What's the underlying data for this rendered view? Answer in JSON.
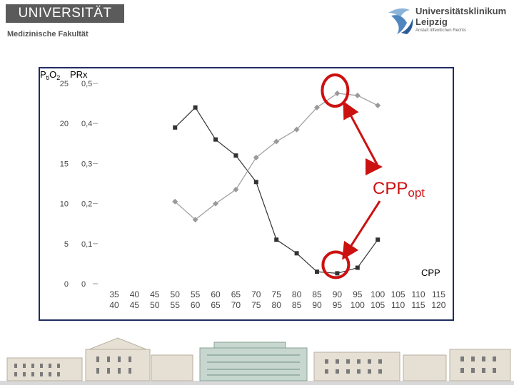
{
  "header": {
    "university": "UNIVERSITÄT LEIPZIG",
    "faculty": "Medizinische Fakultät",
    "clinic_line1": "Universitätsklinikum",
    "clinic_line2": "Leipzig",
    "clinic_line3": "Anstalt öffentlichen Rechts"
  },
  "chart_data": {
    "type": "line",
    "axis_title_left_a": "PtiO2",
    "axis_title_left_b": "PRx",
    "xlabel": "CPP",
    "annotation": "CPPopt",
    "categories": [
      "35 40",
      "40 45",
      "45 50",
      "50 55",
      "55 60",
      "60 65",
      "65 70",
      "70 75",
      "75 80",
      "80 85",
      "85 90",
      "90 95",
      "95 100",
      "100 105",
      "105 110",
      "110 115",
      "115 120"
    ],
    "category_top": [
      "35",
      "40",
      "45",
      "50",
      "55",
      "60",
      "65",
      "70",
      "75",
      "80",
      "85",
      "90",
      "95",
      "100",
      "105",
      "110",
      "115"
    ],
    "category_bottom": [
      "40",
      "45",
      "50",
      "55",
      "60",
      "65",
      "70",
      "75",
      "80",
      "85",
      "90",
      "95",
      "100",
      "105",
      "110",
      "115",
      "120"
    ],
    "y_ticks_ptio2": [
      "25",
      "20",
      "15",
      "10",
      "5",
      "0"
    ],
    "y_ticks_prx": [
      "0,5",
      "0,4",
      "0,3",
      "0,2",
      "0,1",
      "0"
    ],
    "ylim_ptio2": [
      0,
      25
    ],
    "ylim_prx": [
      0,
      0.5
    ],
    "series": [
      {
        "values": [
          null,
          null,
          null,
          19.5,
          22,
          18,
          16,
          12.7,
          5.5,
          3.8,
          1.5,
          1.3,
          2,
          5.5,
          null,
          null,
          null
        ],
        "color": "#333333",
        "marker": "square"
      },
      {
        "values": [
          null,
          null,
          null,
          0.205,
          0.16,
          0.2,
          0.235,
          0.315,
          0.355,
          0.385,
          0.44,
          0.475,
          0.47,
          0.445,
          null,
          null,
          null
        ],
        "color": "#9a9a9a",
        "marker": "diamond"
      }
    ],
    "accent_color": "#cc1111"
  }
}
